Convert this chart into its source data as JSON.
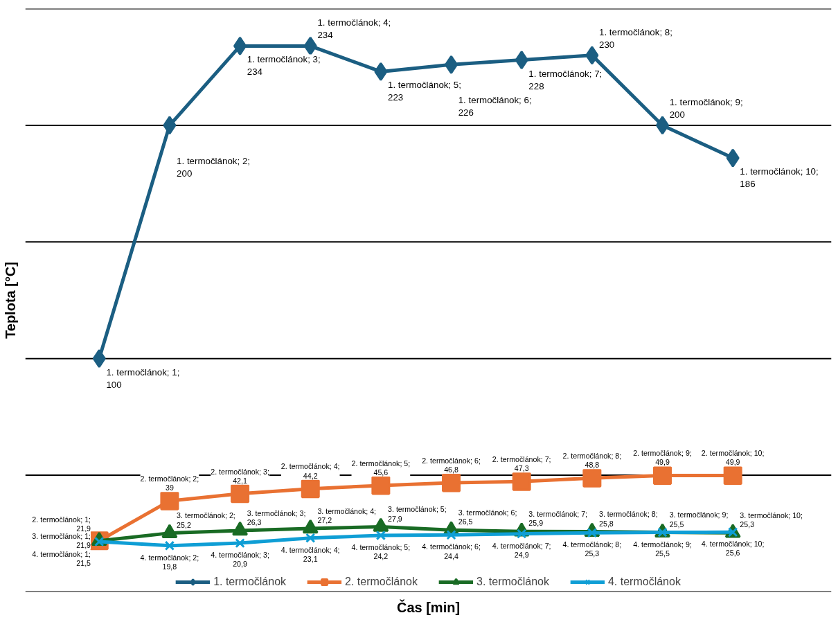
{
  "chart_data": {
    "type": "line",
    "xlabel": "Čas [min]",
    "ylabel": "Teplota [°C]",
    "categories": [
      null,
      null,
      null,
      null,
      null,
      null,
      null,
      null,
      null,
      null
    ],
    "ylim": [
      0,
      250
    ],
    "yticks": [
      {
        "value": 0,
        "label": null
      },
      {
        "value": 50,
        "label": null
      },
      {
        "value": 100,
        "label": null
      },
      {
        "value": 150,
        "label": null
      },
      {
        "value": 200,
        "label": null
      },
      {
        "value": 250,
        "label": null
      }
    ],
    "grid": "y",
    "legend": "bottom",
    "line_style": "solid",
    "series": [
      {
        "name": "1. termočlánok",
        "color": "#1b5e82",
        "marker": "diamond",
        "values": [
          100,
          200,
          234,
          234,
          223,
          226,
          228,
          230,
          200,
          186
        ],
        "value_labels": [
          "1. termočlánok; 1;\n100",
          "1. termočlánok; 2;\n200",
          "1. termočlánok; 3;\n234",
          "1. termočlánok; 4;\n234",
          "1. termočlánok; 5;\n223",
          "1. termočlánok; 6;\n226",
          "1. termočlánok; 7;\n228",
          "1. termočlánok; 8;\n230",
          "1. termočlánok; 9;\n200",
          "1. termočlánok; 10;\n186"
        ]
      },
      {
        "name": "2. termočlánok",
        "color": "#e97132",
        "marker": "square",
        "values": [
          21.9,
          39,
          42.1,
          44.2,
          45.6,
          46.8,
          47.3,
          48.8,
          49.9,
          49.9
        ],
        "value_labels": [
          "2. termočlánok; 1;\n21,9",
          "2. termočlánok; 2;\n39",
          "2. termočlánok; 3;\n42,1",
          "2. termočlánok; 4;\n44,2",
          "2. termočlánok; 5;\n45,6",
          "2. termočlánok; 6;\n46,8",
          "2. termočlánok; 7;\n47,3",
          "2. termočlánok; 8;\n48,8",
          "2. termočlánok; 9;\n49,9",
          "2. termočlánok; 10;\n49,9"
        ]
      },
      {
        "name": "3. termočlánok",
        "color": "#196b24",
        "marker": "triangle",
        "values": [
          21.9,
          25.2,
          26.3,
          27.2,
          27.9,
          26.5,
          25.9,
          25.8,
          25.5,
          25.3
        ],
        "value_labels": [
          "3. termočlánok; 1;\n21,9",
          "3. termočlánok; 2;\n25,2",
          "3. termočlánok; 3;\n26,3",
          "3. termočlánok; 4;\n27,2",
          "3. termočlánok; 5;\n27,9",
          "3. termočlánok; 6;\n26,5",
          "3. termočlánok; 7;\n25,9",
          "3. termočlánok; 8;\n25,8",
          "3. termočlánok; 9;\n25,5",
          "3. termočlánok; 10;\n25,3"
        ]
      },
      {
        "name": "4. termočlánok",
        "color": "#0f9ed5",
        "marker": "cross",
        "values": [
          21.5,
          19.8,
          20.9,
          23.1,
          24.2,
          24.4,
          24.9,
          25.3,
          25.5,
          25.6
        ],
        "value_labels": [
          "4. termočlánok; 1;\n21,5",
          "4. termočlánok; 2;\n19,8",
          "4. termočlánok; 3;\n20,9",
          "4. termočlánok; 4;\n23,1",
          "4. termočlánok; 5;\n24,2",
          "4. termočlánok; 6;\n24,4",
          "4. termočlánok; 7;\n24,9",
          "4. termočlánok; 8;\n25,3",
          "4. termočlánok; 9;\n25,5",
          "4. termočlánok; 10;\n25,6"
        ]
      }
    ]
  }
}
